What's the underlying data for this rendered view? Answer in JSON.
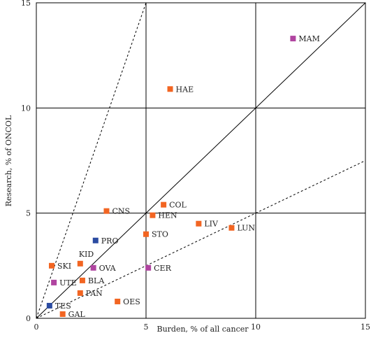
{
  "chart_data": {
    "type": "scatter",
    "title": "",
    "xlabel": "Burden, % of all cancer",
    "ylabel": "Research, % of ONCOL",
    "xlim": [
      0,
      15
    ],
    "ylim": [
      0,
      15
    ],
    "xticks": [
      "0",
      "5",
      "10",
      "15"
    ],
    "yticks": [
      "0",
      "5",
      "10",
      "15"
    ],
    "grid": true,
    "reference_lines": [
      {
        "style": "solid",
        "slope": 1
      },
      {
        "style": "dashed",
        "slope": 3
      },
      {
        "style": "dashed",
        "slope": 0.5
      }
    ],
    "colors": {
      "orange": "#f26522",
      "purple": "#b044a0",
      "blue": "#2b4ba1"
    },
    "points": [
      {
        "label": "MAM",
        "x": 11.7,
        "y": 13.3,
        "color": "purple"
      },
      {
        "label": "HAE",
        "x": 6.1,
        "y": 10.9,
        "color": "orange"
      },
      {
        "label": "CNS",
        "x": 3.2,
        "y": 5.1,
        "color": "orange"
      },
      {
        "label": "COL",
        "x": 5.8,
        "y": 5.4,
        "color": "orange"
      },
      {
        "label": "HEN",
        "x": 5.3,
        "y": 4.9,
        "color": "orange"
      },
      {
        "label": "LIV",
        "x": 7.4,
        "y": 4.5,
        "color": "orange"
      },
      {
        "label": "LUN",
        "x": 8.9,
        "y": 4.3,
        "color": "orange"
      },
      {
        "label": "STO",
        "x": 5.0,
        "y": 4.0,
        "color": "orange"
      },
      {
        "label": "PRO",
        "x": 2.7,
        "y": 3.7,
        "color": "blue"
      },
      {
        "label": "KID",
        "x": 2.0,
        "y": 2.6,
        "color": "orange"
      },
      {
        "label": "SKI",
        "x": 0.7,
        "y": 2.5,
        "color": "orange"
      },
      {
        "label": "OVA",
        "x": 2.6,
        "y": 2.4,
        "color": "purple"
      },
      {
        "label": "CER",
        "x": 5.1,
        "y": 2.4,
        "color": "purple"
      },
      {
        "label": "BLA",
        "x": 2.1,
        "y": 1.8,
        "color": "orange"
      },
      {
        "label": "UTE",
        "x": 0.8,
        "y": 1.7,
        "color": "purple"
      },
      {
        "label": "PAN",
        "x": 2.0,
        "y": 1.2,
        "color": "orange"
      },
      {
        "label": "OES",
        "x": 3.7,
        "y": 0.8,
        "color": "orange"
      },
      {
        "label": "TES",
        "x": 0.6,
        "y": 0.6,
        "color": "blue"
      },
      {
        "label": "GAL",
        "x": 1.2,
        "y": 0.2,
        "color": "orange"
      }
    ]
  }
}
